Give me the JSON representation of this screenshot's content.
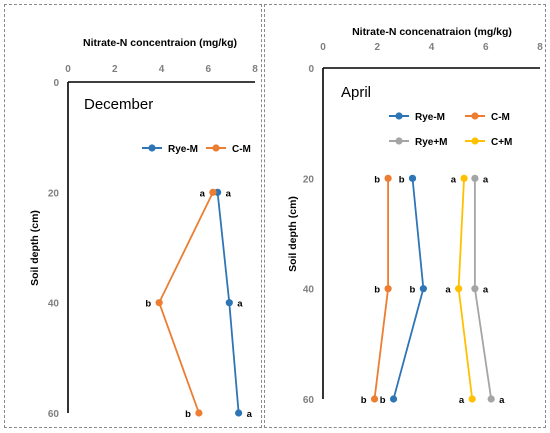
{
  "chart_data": [
    {
      "type": "line",
      "orientation": "depth-profile",
      "panel_label": "December",
      "xlabel": "Nitrate-N concentraion (mg/kg)",
      "ylabel": "Soil depth (cm)",
      "xlim": [
        0,
        8
      ],
      "ylim": [
        0,
        60
      ],
      "xticks": [
        0,
        2,
        4,
        6,
        8
      ],
      "yticks": [
        0,
        20,
        40,
        60
      ],
      "x_axis_position": "top",
      "y_axis_inverted": true,
      "grid": false,
      "legend": {
        "position": "upper-right",
        "columns": 2
      },
      "series": [
        {
          "name": "Rye-M",
          "color": "#2E75B6",
          "points": [
            {
              "x": 6.4,
              "y": 20,
              "label": "a"
            },
            {
              "x": 6.9,
              "y": 40,
              "label": "a"
            },
            {
              "x": 7.3,
              "y": 60,
              "label": "a"
            }
          ]
        },
        {
          "name": "C-M",
          "color": "#ED7D31",
          "points": [
            {
              "x": 6.2,
              "y": 20,
              "label": "a"
            },
            {
              "x": 3.9,
              "y": 40,
              "label": "b"
            },
            {
              "x": 5.6,
              "y": 60,
              "label": "b"
            }
          ]
        }
      ]
    },
    {
      "type": "line",
      "orientation": "depth-profile",
      "panel_label": "April",
      "xlabel": "Nitrate-N concenatraion (mg/kg)",
      "ylabel": "Soil depth (cm)",
      "xlim": [
        0,
        8
      ],
      "ylim": [
        0,
        60
      ],
      "xticks": [
        0,
        2,
        4,
        6,
        8
      ],
      "yticks": [
        0,
        20,
        40,
        60
      ],
      "x_axis_position": "top",
      "y_axis_inverted": true,
      "grid": false,
      "legend": {
        "position": "upper-right",
        "columns": 2
      },
      "series": [
        {
          "name": "Rye-M",
          "color": "#2E75B6",
          "points": [
            {
              "x": 3.3,
              "y": 20,
              "label": "b"
            },
            {
              "x": 3.7,
              "y": 40,
              "label": "b"
            },
            {
              "x": 2.6,
              "y": 60,
              "label": "b"
            }
          ]
        },
        {
          "name": "C-M",
          "color": "#ED7D31",
          "points": [
            {
              "x": 2.4,
              "y": 20,
              "label": "b"
            },
            {
              "x": 2.4,
              "y": 40,
              "label": "b"
            },
            {
              "x": 1.9,
              "y": 60,
              "label": "b"
            }
          ]
        },
        {
          "name": "Rye+M",
          "color": "#A5A5A5",
          "points": [
            {
              "x": 5.6,
              "y": 20,
              "label": "a"
            },
            {
              "x": 5.6,
              "y": 40,
              "label": "a"
            },
            {
              "x": 6.2,
              "y": 60,
              "label": "a"
            }
          ]
        },
        {
          "name": "C+M",
          "color": "#FFC000",
          "points": [
            {
              "x": 5.2,
              "y": 20,
              "label": "a"
            },
            {
              "x": 5.0,
              "y": 40,
              "label": "a"
            },
            {
              "x": 5.5,
              "y": 60,
              "label": "a"
            }
          ]
        }
      ]
    }
  ]
}
